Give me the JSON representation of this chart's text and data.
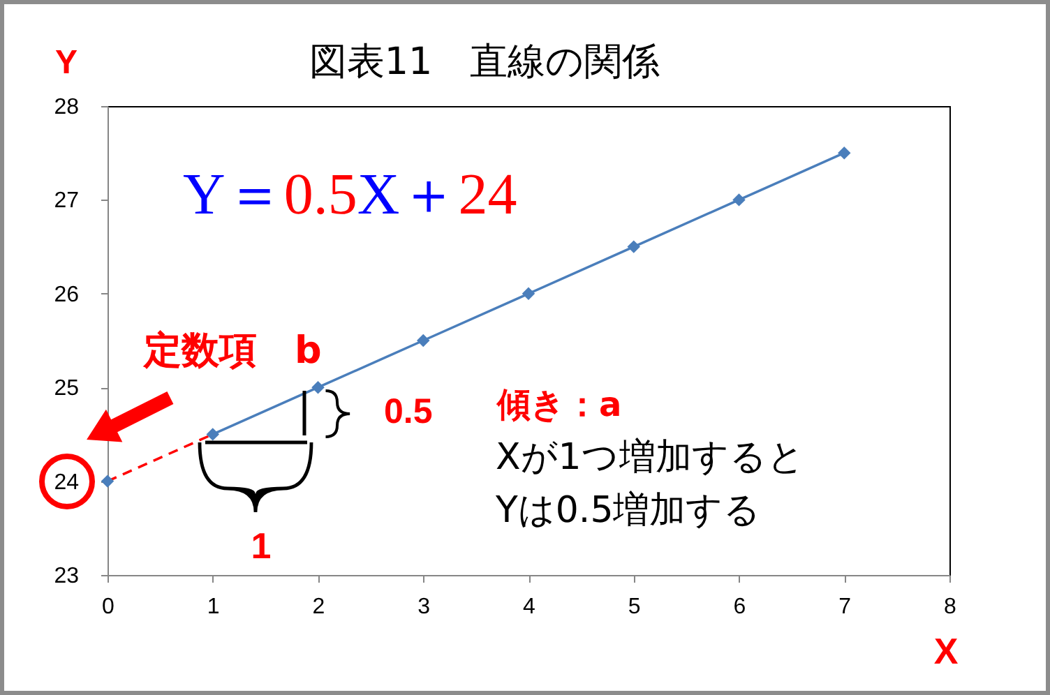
{
  "chart_data": {
    "type": "line",
    "title": "図表11　直線の関係",
    "xlabel": "X",
    "ylabel": "Y",
    "xlim": [
      0,
      8
    ],
    "xticks": [
      0,
      1,
      2,
      3,
      4,
      5,
      6,
      7,
      8
    ],
    "ylim": [
      23,
      28
    ],
    "yticks": [
      23,
      24,
      25,
      26,
      27,
      28
    ],
    "grid": false,
    "series": [
      {
        "type": "line",
        "color": "#4a7ebb",
        "marker": "diamond",
        "x": [
          1,
          2,
          3,
          4,
          5,
          6,
          7
        ],
        "values": [
          24.5,
          25,
          25.5,
          26,
          26.5,
          27,
          27.5
        ]
      },
      {
        "type": "scatter",
        "color": "#4a7ebb",
        "marker": "diamond",
        "x": [
          0
        ],
        "values": [
          24
        ]
      },
      {
        "type": "line",
        "color": "#ff0000",
        "marker": "none",
        "line_style": "dashed",
        "x": [
          0,
          1
        ],
        "values": [
          24,
          24.5
        ]
      }
    ],
    "annotations": [
      "Y＝0.5X＋24",
      "定数項　b",
      "0.5",
      "1",
      "傾き：a",
      "Xが1つ増加すると",
      "Yは0.5増加する"
    ]
  }
}
